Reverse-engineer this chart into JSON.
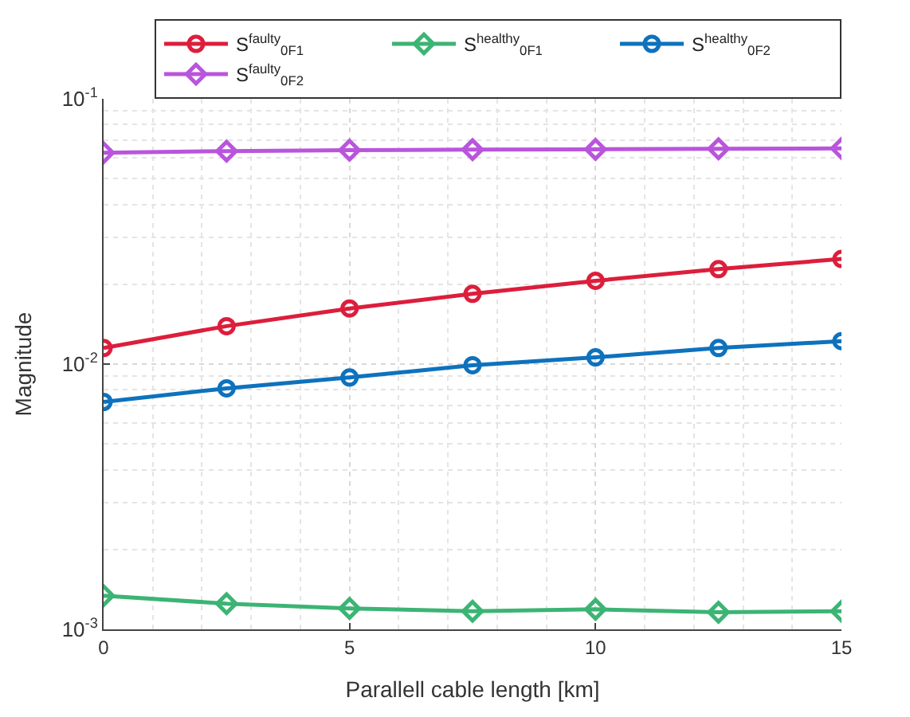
{
  "chart_data": {
    "type": "line",
    "xlabel": "Parallell cable length [km]",
    "ylabel": "Magnitude",
    "x": [
      0,
      2.5,
      5,
      7.5,
      10,
      12.5,
      15
    ],
    "series": [
      {
        "name": "S$^{faulty}$$_{0F1}$",
        "color": "#dc1e3c",
        "marker": "circle",
        "values": [
          0.0115,
          0.0139,
          0.0162,
          0.0184,
          0.0206,
          0.0228,
          0.0249
        ]
      },
      {
        "name": "S$^{healthy}$$_{0F1}$",
        "color": "#3cb474",
        "marker": "diamond",
        "values": [
          0.00134,
          0.00125,
          0.0012,
          0.00117,
          0.00119,
          0.00116,
          0.00117
        ]
      },
      {
        "name": "S$^{healthy}$$_{0F2}$",
        "color": "#0e72bd",
        "marker": "circle",
        "values": [
          0.0072,
          0.0081,
          0.0089,
          0.0099,
          0.0106,
          0.0115,
          0.0122
        ]
      },
      {
        "name": "S$^{faulty}$$_{0F2}$",
        "color": "#b955dc",
        "marker": "diamond",
        "values": [
          0.0626,
          0.0635,
          0.064,
          0.0643,
          0.0645,
          0.0648,
          0.065
        ]
      }
    ],
    "log": "y",
    "xlim": [
      0,
      15
    ],
    "xticks": [
      0,
      5,
      10,
      15
    ],
    "ylim": [
      0.001,
      0.1
    ],
    "yticks": [
      {
        "value": 0.001,
        "label": "10$^{-3}$"
      },
      {
        "value": 0.01,
        "label": "10$^{-2}$"
      },
      {
        "value": 0.1,
        "label": "10$^{-1}$"
      }
    ],
    "grid": true,
    "legend": "top right"
  }
}
